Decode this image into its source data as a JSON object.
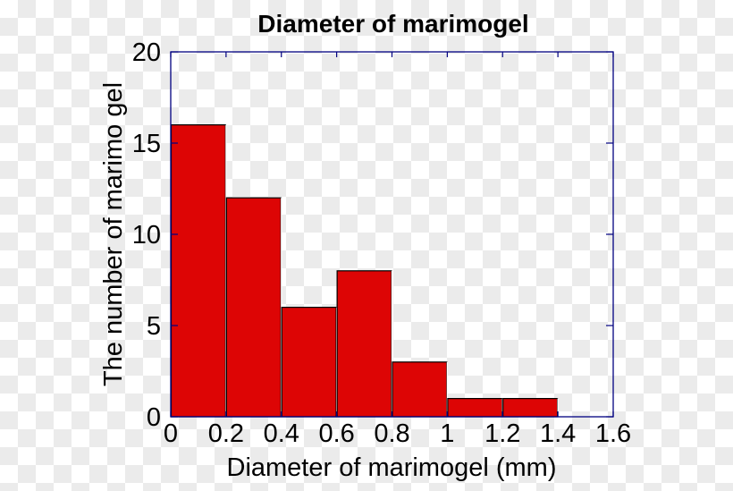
{
  "chart_data": {
    "type": "bar",
    "subtype": "histogram",
    "title": "Diameter of marimogel",
    "xlabel": "Diameter of marimogel (mm)",
    "ylabel": "The number of marimo gel",
    "bin_edges": [
      0,
      0.2,
      0.4,
      0.6,
      0.8,
      1.0,
      1.2,
      1.4,
      1.6
    ],
    "categories": [
      "0-0.2",
      "0.2-0.4",
      "0.4-0.6",
      "0.6-0.8",
      "0.8-1.0",
      "1.0-1.2",
      "1.2-1.4",
      "1.4-1.6"
    ],
    "values": [
      16,
      12,
      6,
      8,
      3,
      1,
      1,
      0
    ],
    "xlim": [
      0,
      1.6
    ],
    "ylim": [
      0,
      20
    ],
    "xticks": [
      0,
      0.2,
      0.4,
      0.6,
      0.8,
      1,
      1.2,
      1.4,
      1.6
    ],
    "xtick_labels": [
      "0",
      "0.2",
      "0.4",
      "0.6",
      "0.8",
      "1",
      "1.2",
      "1.4",
      "1.6"
    ],
    "yticks": [
      0,
      5,
      10,
      15,
      20
    ],
    "ytick_labels": [
      "0",
      "5",
      "10",
      "15",
      "20"
    ],
    "grid": false,
    "legend": null,
    "colors": {
      "bar_fill": "#dd0505",
      "bar_edge": "#000000",
      "axes": "#000080"
    }
  }
}
